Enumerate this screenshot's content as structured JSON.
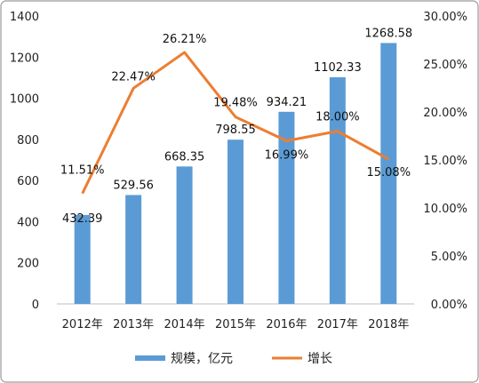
{
  "chart_data": {
    "type": "bar+line",
    "categories": [
      "2012年",
      "2013年",
      "2014年",
      "2015年",
      "2016年",
      "2017年",
      "2018年"
    ],
    "series": [
      {
        "name": "规模，亿元",
        "type": "bar",
        "axis": "left",
        "values": [
          432.39,
          529.56,
          668.35,
          798.55,
          934.21,
          1102.33,
          1268.58
        ],
        "labels": [
          "432.39",
          "529.56",
          "668.35",
          "798.55",
          "934.21",
          "1102.33",
          "1268.58"
        ],
        "color": "#5B9BD5"
      },
      {
        "name": "增长",
        "type": "line",
        "axis": "right",
        "values": [
          11.51,
          22.47,
          26.21,
          19.48,
          16.99,
          18.0,
          15.08
        ],
        "labels": [
          "11.51%",
          "22.47%",
          "26.21%",
          "19.48%",
          "16.99%",
          "18.00%",
          "15.08%"
        ],
        "color": "#ED7D31"
      }
    ],
    "y_left": {
      "min": 0,
      "max": 1400,
      "step": 200,
      "ticks": [
        "0",
        "200",
        "400",
        "600",
        "800",
        "1000",
        "1200",
        "1400"
      ]
    },
    "y_right": {
      "min": 0,
      "max": 30,
      "step": 5,
      "ticks": [
        "0.00%",
        "5.00%",
        "10.00%",
        "15.00%",
        "20.00%",
        "25.00%",
        "30.00%"
      ]
    },
    "grid": false,
    "legend": "bottom"
  }
}
